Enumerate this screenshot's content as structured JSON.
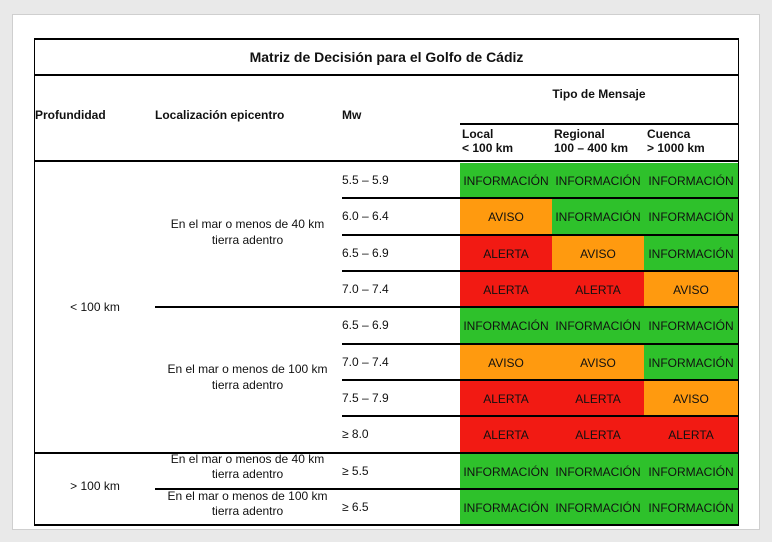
{
  "title": "Matriz de Decisión para el Golfo de Cádiz",
  "headers": {
    "depth": "Profundidad",
    "location": "Localización epicentro",
    "mw": "Mw",
    "message_type": "Tipo de Mensaje",
    "local_name": "Local",
    "local_range": "< 100 km",
    "regional_name": "Regional",
    "regional_range": "100 – 400 km",
    "basin_name": "Cuenca",
    "basin_range": "> 1000 km"
  },
  "depth_groups": [
    "< 100 km",
    "> 100 km"
  ],
  "locations": [
    [
      "En el mar o menos de 40 km",
      "tierra adentro"
    ],
    [
      "En el mar o menos de 100 km",
      "tierra adentro"
    ],
    [
      "En el mar o menos de 40 km",
      "tierra adentro"
    ],
    [
      "En el mar o menos de 100 km",
      "tierra adentro"
    ]
  ],
  "rows": [
    {
      "mw": "5.5 – 5.9",
      "local": "INFORMACIÓN",
      "regional": "INFORMACIÓN",
      "basin": "INFORMACIÓN"
    },
    {
      "mw": "6.0 – 6.4",
      "local": "AVISO",
      "regional": "INFORMACIÓN",
      "basin": "INFORMACIÓN"
    },
    {
      "mw": "6.5 – 6.9",
      "local": "ALERTA",
      "regional": "AVISO",
      "basin": "INFORMACIÓN"
    },
    {
      "mw": "7.0 – 7.4",
      "local": "ALERTA",
      "regional": "ALERTA",
      "basin": "AVISO"
    },
    {
      "mw": "6.5 – 6.9",
      "local": "INFORMACIÓN",
      "regional": "INFORMACIÓN",
      "basin": "INFORMACIÓN"
    },
    {
      "mw": "7.0 – 7.4",
      "local": "AVISO",
      "regional": "AVISO",
      "basin": "INFORMACIÓN"
    },
    {
      "mw": "7.5 – 7.9",
      "local": "ALERTA",
      "regional": "ALERTA",
      "basin": "AVISO"
    },
    {
      "mw": "≥ 8.0",
      "local": "ALERTA",
      "regional": "ALERTA",
      "basin": "ALERTA"
    },
    {
      "mw": "≥ 5.5",
      "local": "INFORMACIÓN",
      "regional": "INFORMACIÓN",
      "basin": "INFORMACIÓN"
    },
    {
      "mw": "≥ 6.5",
      "local": "INFORMACIÓN",
      "regional": "INFORMACIÓN",
      "basin": "INFORMACIÓN"
    }
  ],
  "level_colors": {
    "INFORMACIÓN": "#2ec12b",
    "AVISO": "#ff9a0f",
    "ALERTA": "#f21a13"
  }
}
